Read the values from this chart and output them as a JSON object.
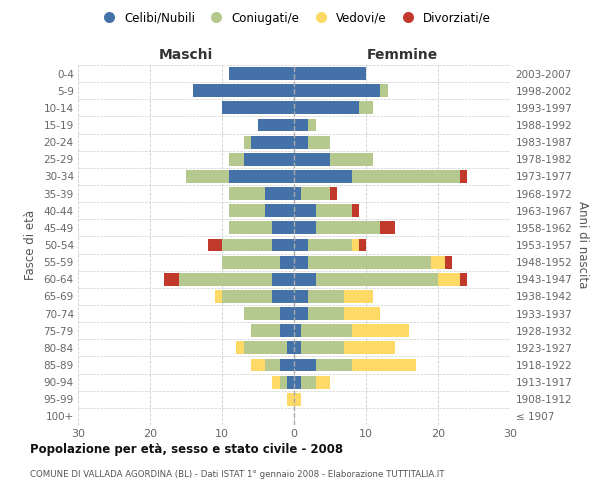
{
  "age_groups": [
    "100+",
    "95-99",
    "90-94",
    "85-89",
    "80-84",
    "75-79",
    "70-74",
    "65-69",
    "60-64",
    "55-59",
    "50-54",
    "45-49",
    "40-44",
    "35-39",
    "30-34",
    "25-29",
    "20-24",
    "15-19",
    "10-14",
    "5-9",
    "0-4"
  ],
  "birth_years": [
    "≤ 1907",
    "1908-1912",
    "1913-1917",
    "1918-1922",
    "1923-1927",
    "1928-1932",
    "1933-1937",
    "1938-1942",
    "1943-1947",
    "1948-1952",
    "1953-1957",
    "1958-1962",
    "1963-1967",
    "1968-1972",
    "1973-1977",
    "1978-1982",
    "1983-1987",
    "1988-1992",
    "1993-1997",
    "1998-2002",
    "2003-2007"
  ],
  "colors": {
    "celibe": "#4472a8",
    "coniugato": "#b5c98e",
    "vedovo": "#ffd966",
    "divorziato": "#c0392b"
  },
  "males": {
    "celibe": [
      0,
      0,
      1,
      2,
      1,
      2,
      2,
      3,
      3,
      2,
      3,
      3,
      4,
      4,
      9,
      7,
      6,
      5,
      10,
      14,
      9
    ],
    "coniugato": [
      0,
      0,
      1,
      2,
      6,
      4,
      5,
      7,
      13,
      8,
      7,
      6,
      5,
      5,
      6,
      2,
      1,
      0,
      0,
      0,
      0
    ],
    "vedovo": [
      0,
      1,
      1,
      2,
      1,
      0,
      0,
      1,
      0,
      0,
      0,
      0,
      0,
      0,
      0,
      0,
      0,
      0,
      0,
      0,
      0
    ],
    "divorziato": [
      0,
      0,
      0,
      0,
      0,
      0,
      0,
      0,
      2,
      0,
      2,
      0,
      0,
      0,
      0,
      0,
      0,
      0,
      0,
      0,
      0
    ]
  },
  "females": {
    "nubile": [
      0,
      0,
      1,
      3,
      1,
      1,
      2,
      2,
      3,
      2,
      2,
      3,
      3,
      1,
      8,
      5,
      2,
      2,
      9,
      12,
      10
    ],
    "coniugata": [
      0,
      0,
      2,
      5,
      6,
      7,
      5,
      5,
      17,
      17,
      6,
      9,
      5,
      4,
      15,
      6,
      3,
      1,
      2,
      1,
      0
    ],
    "vedova": [
      0,
      1,
      2,
      9,
      7,
      8,
      5,
      4,
      3,
      2,
      1,
      0,
      0,
      0,
      0,
      0,
      0,
      0,
      0,
      0,
      0
    ],
    "divorziata": [
      0,
      0,
      0,
      0,
      0,
      0,
      0,
      0,
      1,
      1,
      1,
      2,
      1,
      1,
      1,
      0,
      0,
      0,
      0,
      0,
      0
    ]
  },
  "title": "Popolazione per età, sesso e stato civile - 2008",
  "subtitle": "COMUNE DI VALLADA AGORDINA (BL) - Dati ISTAT 1° gennaio 2008 - Elaborazione TUTTITALIA.IT",
  "xlabel_left": "Maschi",
  "xlabel_right": "Femmine",
  "ylabel_left": "Fasce di età",
  "ylabel_right": "Anni di nascita",
  "xlim": 30,
  "legend_labels": [
    "Celibi/Nubili",
    "Coniugati/e",
    "Vedovi/e",
    "Divorziati/e"
  ],
  "background_color": "#ffffff",
  "grid_color": "#cccccc"
}
